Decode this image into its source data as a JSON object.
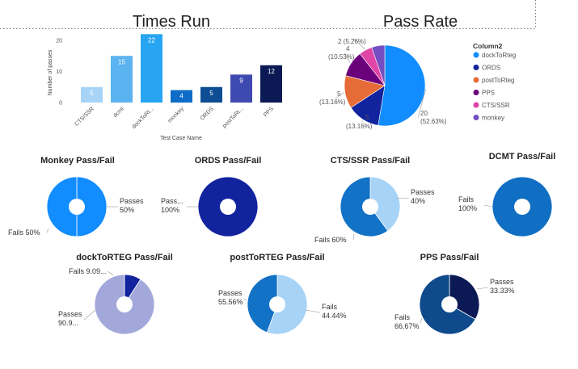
{
  "colors": {
    "dockToRteg": "#118DFF",
    "ORDS": "#12239E",
    "postToRteg": "#E66C37",
    "PPS": "#6B007B",
    "CTS_SSR": "#E044A7",
    "monkey": "#744EC2"
  },
  "chart_data": [
    {
      "id": "times-run",
      "type": "bar",
      "title": "Times Run",
      "xlabel": "Test Case Name",
      "ylabel": "Number of passes",
      "ylim": [
        0,
        20
      ],
      "yticks": [
        "0",
        "10",
        "20"
      ],
      "categories": [
        "CTS/SSR",
        "dcmt",
        "dockToRt...",
        "monkey",
        "ORDS",
        "postToRt...",
        "PPS"
      ],
      "values": [
        5,
        15,
        22,
        4,
        5,
        9,
        12
      ],
      "labels": [
        "5",
        "15",
        "22",
        "4",
        "5",
        "9",
        "12"
      ],
      "colors": [
        "#A7D3F6",
        "#5BB3F0",
        "#27A5F2",
        "#0E6BC8",
        "#0C4D93",
        "#3F4AB0",
        "#0B1A55"
      ],
      "grid": false
    },
    {
      "id": "pass-rate",
      "type": "pie",
      "title": "Pass Rate",
      "legend_title": "Column2",
      "legend_position": "right",
      "slices": [
        {
          "name": "dockToRteg",
          "value": 20,
          "label_value": "20",
          "label_pct": "(52.63%)",
          "color": "#118DFF"
        },
        {
          "name": "ORDS",
          "value": 5,
          "label_value": "5",
          "label_pct": "(13.16%)",
          "color": "#12239E"
        },
        {
          "name": "postToRteg",
          "value": 5,
          "label_value": "5",
          "label_pct": "(13.16%)",
          "color": "#E66C37"
        },
        {
          "name": "PPS",
          "value": 4,
          "label_value": "4",
          "label_pct": "(10.53%)",
          "color": "#6B007B"
        },
        {
          "name": "CTS/SSR",
          "value": 2,
          "label_value": "2",
          "label_pct": "(5.26%)",
          "color": "#E044A7"
        },
        {
          "name": "monkey",
          "value": 2,
          "label_value": "",
          "label_pct": "",
          "color": "#744EC2"
        }
      ]
    },
    {
      "id": "monkey",
      "type": "pie",
      "title": "Monkey Pass/Fail",
      "slices": [
        {
          "name": "Passes",
          "value": 50,
          "label": "Passes 50%",
          "color": "#118DFF"
        },
        {
          "name": "Fails",
          "value": 50,
          "label": "Fails 50%",
          "color": "#118DFF"
        }
      ]
    },
    {
      "id": "ords",
      "type": "pie",
      "title": "ORDS Pass/Fail",
      "slices": [
        {
          "name": "Passes",
          "value": 100,
          "label": "Pass... 100%",
          "color": "#12239E"
        }
      ]
    },
    {
      "id": "cts-ssr",
      "type": "pie",
      "title": "CTS/SSR Pass/Fail",
      "slices": [
        {
          "name": "Passes",
          "value": 40,
          "label": "Passes 40%",
          "color": "#A7D3F6"
        },
        {
          "name": "Fails",
          "value": 60,
          "label": "Fails 60%",
          "color": "#1272C6"
        }
      ]
    },
    {
      "id": "dcmt",
      "type": "pie",
      "title": "DCMT Pass/Fail",
      "slices": [
        {
          "name": "Fails",
          "value": 100,
          "label": "Fails 100%",
          "color": "#106EC3"
        }
      ]
    },
    {
      "id": "docktorteg",
      "type": "pie",
      "title": "dockToRTEG Pass/Fail",
      "slices": [
        {
          "name": "Fails",
          "value": 9.09,
          "label": "Fails 9.09...",
          "color": "#12239E"
        },
        {
          "name": "Passes",
          "value": 90.91,
          "label": "Passes 90.9...",
          "color": "#A3A8DB"
        }
      ]
    },
    {
      "id": "posttorteg",
      "type": "pie",
      "title": "postToRTEG Pass/Fail",
      "slices": [
        {
          "name": "Passes",
          "value": 55.56,
          "label": "Passes 55.56%",
          "color": "#A7D3F6"
        },
        {
          "name": "Fails",
          "value": 44.44,
          "label": "Fails 44.44%",
          "color": "#1272C6"
        }
      ]
    },
    {
      "id": "pps",
      "type": "pie",
      "title": "PPS Pass/Fail",
      "slices": [
        {
          "name": "Passes",
          "value": 33.33,
          "label": "Passes 33.33%",
          "color": "#0B1A55"
        },
        {
          "name": "Fails",
          "value": 66.67,
          "label": "Fails 66.67%",
          "color": "#0E4A8C"
        }
      ]
    }
  ]
}
